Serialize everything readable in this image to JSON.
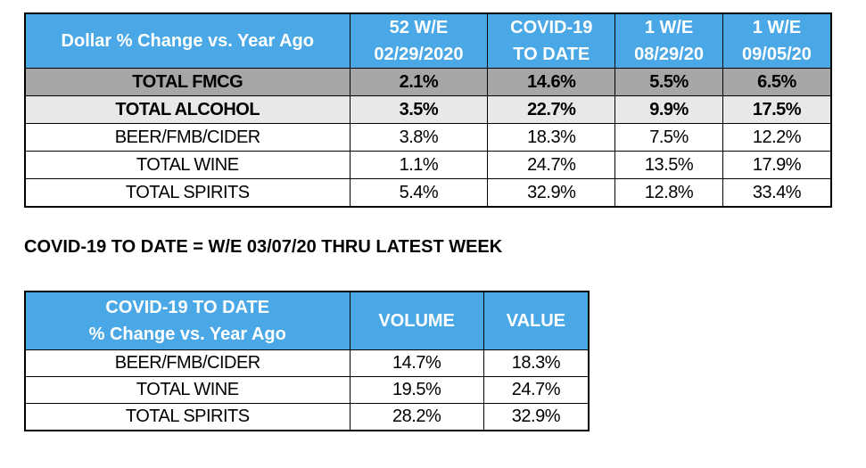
{
  "table1": {
    "header": {
      "label": "Dollar % Change vs. Year Ago",
      "columns": [
        {
          "line1": "52 W/E",
          "line2": "02/29/2020"
        },
        {
          "line1": "COVID-19",
          "line2": "TO DATE"
        },
        {
          "line1": "1 W/E",
          "line2": "08/29/20"
        },
        {
          "line1": "1 W/E",
          "line2": "09/05/20"
        }
      ]
    },
    "rows": [
      {
        "name": "TOTAL FMCG",
        "values": [
          "2.1%",
          "14.6%",
          "5.5%",
          "6.5%"
        ]
      },
      {
        "name": "TOTAL ALCOHOL",
        "values": [
          "3.5%",
          "22.7%",
          "9.9%",
          "17.5%"
        ]
      },
      {
        "name": "BEER/FMB/CIDER",
        "values": [
          "3.8%",
          "18.3%",
          "7.5%",
          "12.2%"
        ]
      },
      {
        "name": "TOTAL WINE",
        "values": [
          "1.1%",
          "24.7%",
          "13.5%",
          "17.9%"
        ]
      },
      {
        "name": "TOTAL SPIRITS",
        "values": [
          "5.4%",
          "32.9%",
          "12.8%",
          "33.4%"
        ]
      }
    ]
  },
  "note": "COVID-19 TO DATE = W/E 03/07/20 THRU LATEST WEEK",
  "table2": {
    "header": {
      "label_line1": "COVID-19 TO DATE",
      "label_line2": "% Change vs. Year Ago",
      "columns": [
        "VOLUME",
        "VALUE"
      ]
    },
    "rows": [
      {
        "name": "BEER/FMB/CIDER",
        "values": [
          "14.7%",
          "18.3%"
        ]
      },
      {
        "name": "TOTAL WINE",
        "values": [
          "19.5%",
          "24.7%"
        ]
      },
      {
        "name": "TOTAL SPIRITS",
        "values": [
          "28.2%",
          "32.9%"
        ]
      }
    ]
  },
  "chart_data": [
    {
      "type": "table",
      "title": "Dollar % Change vs. Year Ago",
      "columns": [
        "52 W/E 02/29/2020",
        "COVID-19 TO DATE",
        "1 W/E 08/29/20",
        "1 W/E 09/05/20"
      ],
      "rows": [
        "TOTAL FMCG",
        "TOTAL ALCOHOL",
        "BEER/FMB/CIDER",
        "TOTAL WINE",
        "TOTAL SPIRITS"
      ],
      "values": [
        [
          2.1,
          14.6,
          5.5,
          6.5
        ],
        [
          3.5,
          22.7,
          9.9,
          17.5
        ],
        [
          3.8,
          18.3,
          7.5,
          12.2
        ],
        [
          1.1,
          24.7,
          13.5,
          17.9
        ],
        [
          5.4,
          32.9,
          12.8,
          33.4
        ]
      ]
    },
    {
      "type": "table",
      "title": "COVID-19 TO DATE % Change vs. Year Ago",
      "columns": [
        "VOLUME",
        "VALUE"
      ],
      "rows": [
        "BEER/FMB/CIDER",
        "TOTAL WINE",
        "TOTAL SPIRITS"
      ],
      "values": [
        [
          14.7,
          18.3
        ],
        [
          19.5,
          24.7
        ],
        [
          28.2,
          32.9
        ]
      ]
    }
  ]
}
